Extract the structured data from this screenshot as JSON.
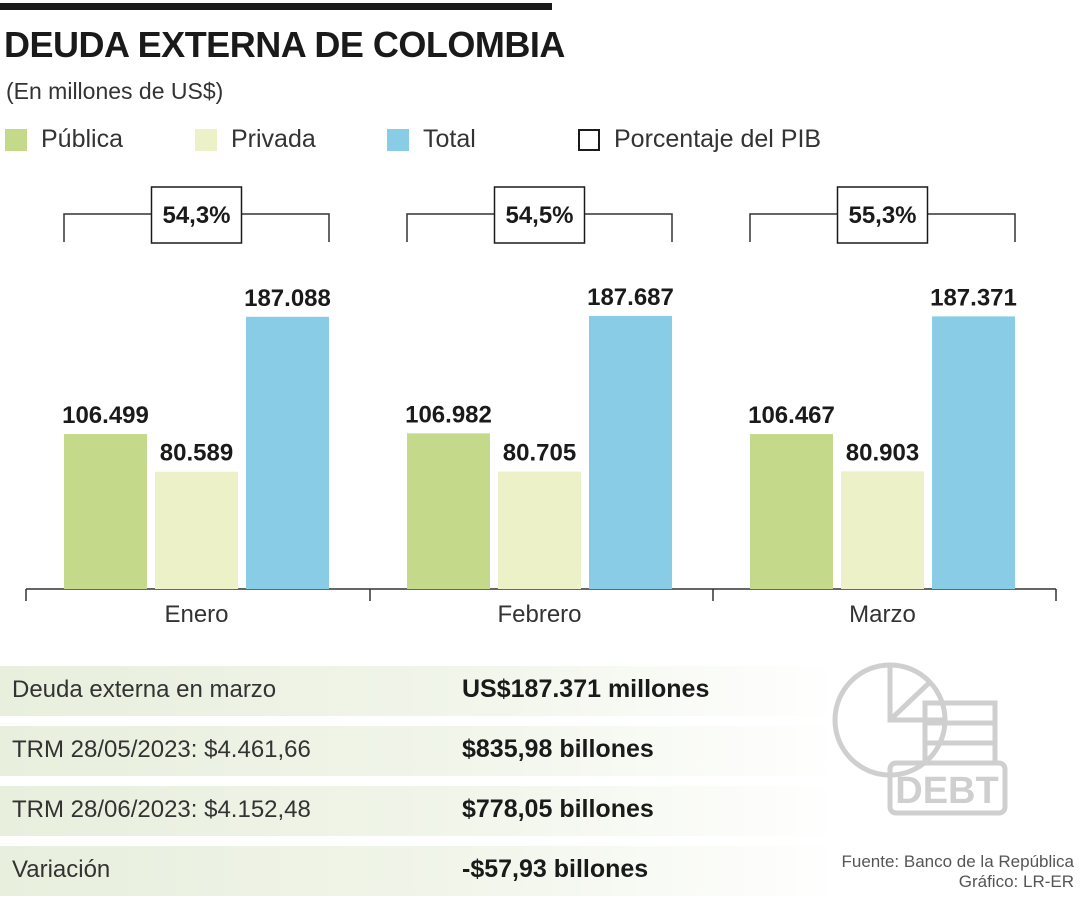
{
  "header": {
    "title": "DEUDA EXTERNA DE COLOMBIA",
    "subtitle": "(En millones de US$)"
  },
  "legend": [
    {
      "label": "Pública",
      "color": "#c5d98a"
    },
    {
      "label": "Privada",
      "color": "#ecf1c7"
    },
    {
      "label": "Total",
      "color": "#88cde5"
    },
    {
      "label": "Porcentaje del PIB",
      "color": "#ffffff"
    }
  ],
  "chart_data": {
    "type": "bar",
    "categories": [
      "Enero",
      "Febrero",
      "Marzo"
    ],
    "series": [
      {
        "name": "Pública",
        "values": [
          106499,
          106982,
          106467
        ],
        "labels": [
          "106.499",
          "106.982",
          "106.467"
        ],
        "color": "#c5d98a"
      },
      {
        "name": "Privada",
        "values": [
          80589,
          80705,
          80903
        ],
        "labels": [
          "80.589",
          "80.705",
          "80.903"
        ],
        "color": "#ecf1c7"
      },
      {
        "name": "Total",
        "values": [
          187088,
          187687,
          187371
        ],
        "labels": [
          "187.088",
          "187.687",
          "187.371"
        ],
        "color": "#88cde5"
      }
    ],
    "pib_percent": [
      "54,3%",
      "54,5%",
      "55,3%"
    ],
    "ylim": [
      0,
      200000
    ],
    "title": "DEUDA EXTERNA DE COLOMBIA",
    "subtitle": "(En millones de US$)",
    "xlabel": "",
    "ylabel": "",
    "grid": false,
    "legend_position": "top"
  },
  "info_table": [
    {
      "label": "Deuda externa en marzo",
      "value": "US$187.371 millones"
    },
    {
      "label": "TRM 28/05/2023: $4.461,66",
      "value": "$835,98 billones"
    },
    {
      "label": "TRM 28/06/2023: $4.152,48",
      "value": "$778,05 billones"
    },
    {
      "label": "Variación",
      "value": "-$57,93 billones"
    }
  ],
  "icon": {
    "name": "debt-icon",
    "text": "DEBT"
  },
  "source": {
    "line1": "Fuente: Banco de la República",
    "line2": "Gráfico: LR-ER"
  }
}
